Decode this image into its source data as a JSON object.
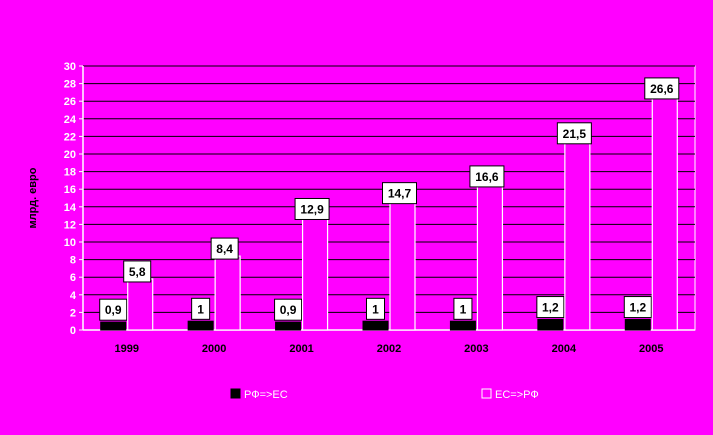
{
  "chart_data": {
    "type": "bar",
    "title": "",
    "xlabel": "",
    "ylabel": "млрд. евро",
    "ylim": [
      0,
      30
    ],
    "yticks": [
      0,
      2,
      4,
      6,
      8,
      10,
      12,
      14,
      16,
      18,
      20,
      22,
      24,
      26,
      28,
      30
    ],
    "grid": true,
    "legend_position": "bottom",
    "categories": [
      "1999",
      "2000",
      "2001",
      "2002",
      "2003",
      "2004",
      "2005"
    ],
    "series": [
      {
        "name": "РФ=>ЕС",
        "values": [
          0.9,
          1,
          0.9,
          1,
          1,
          1.2,
          1.2
        ],
        "labels": [
          "0,9",
          "1",
          "0,9",
          "1",
          "1",
          "1,2",
          "1,2"
        ],
        "color": "#000000"
      },
      {
        "name": "ЕС=>РФ",
        "values": [
          5.8,
          8.4,
          12.9,
          14.7,
          16.6,
          21.5,
          26.6
        ],
        "labels": [
          "5,8",
          "8,4",
          "12,9",
          "14,7",
          "16,6",
          "21,5",
          "26,6"
        ],
        "color": "#ff00ff"
      }
    ]
  }
}
